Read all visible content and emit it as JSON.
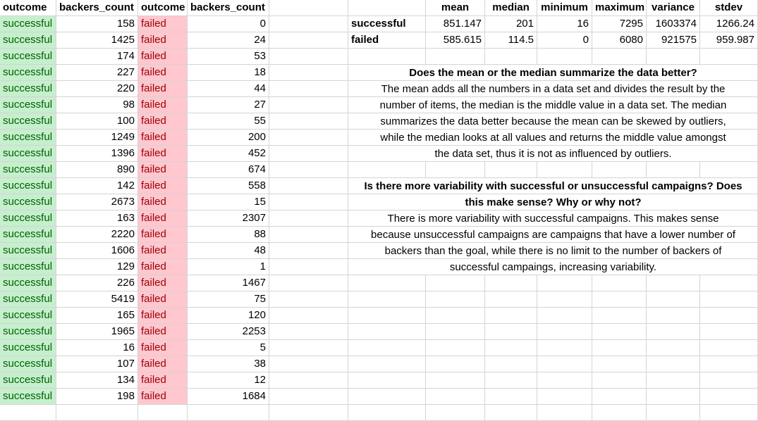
{
  "headers": [
    "outcome",
    "backers_count",
    "outcome",
    "backers_count"
  ],
  "rows": [
    [
      "successful",
      "158",
      "failed",
      "0"
    ],
    [
      "successful",
      "1425",
      "failed",
      "24"
    ],
    [
      "successful",
      "174",
      "failed",
      "53"
    ],
    [
      "successful",
      "227",
      "failed",
      "18"
    ],
    [
      "successful",
      "220",
      "failed",
      "44"
    ],
    [
      "successful",
      "98",
      "failed",
      "27"
    ],
    [
      "successful",
      "100",
      "failed",
      "55"
    ],
    [
      "successful",
      "1249",
      "failed",
      "200"
    ],
    [
      "successful",
      "1396",
      "failed",
      "452"
    ],
    [
      "successful",
      "890",
      "failed",
      "674"
    ],
    [
      "successful",
      "142",
      "failed",
      "558"
    ],
    [
      "successful",
      "2673",
      "failed",
      "15"
    ],
    [
      "successful",
      "163",
      "failed",
      "2307"
    ],
    [
      "successful",
      "2220",
      "failed",
      "88"
    ],
    [
      "successful",
      "1606",
      "failed",
      "48"
    ],
    [
      "successful",
      "129",
      "failed",
      "1"
    ],
    [
      "successful",
      "226",
      "failed",
      "1467"
    ],
    [
      "successful",
      "5419",
      "failed",
      "75"
    ],
    [
      "successful",
      "165",
      "failed",
      "120"
    ],
    [
      "successful",
      "1965",
      "failed",
      "2253"
    ],
    [
      "successful",
      "16",
      "failed",
      "5"
    ],
    [
      "successful",
      "107",
      "failed",
      "38"
    ],
    [
      "successful",
      "134",
      "failed",
      "12"
    ],
    [
      "successful",
      "198",
      "failed",
      "1684"
    ]
  ],
  "stats": {
    "headers": [
      "mean",
      "median",
      "minimum",
      "maximum",
      "variance",
      "stdev"
    ],
    "rows": [
      {
        "label": "successful",
        "values": [
          "851.147",
          "201",
          "16",
          "7295",
          "1603374",
          "1266.24"
        ]
      },
      {
        "label": "failed",
        "values": [
          "585.615",
          "114.5",
          "0",
          "6080",
          "921575",
          "959.987"
        ]
      }
    ]
  },
  "q1": {
    "question": "Does the mean or the median summarize the data better?",
    "answer_lines": [
      "The mean adds all the numbers in a data set and divides the result by the",
      "number of items, the median is the middle value in a data set. The median",
      "summarizes the data better because the mean can be skewed by outliers,",
      "while the median looks at all values and returns the middle value amongst",
      "the data set, thus it is not as influenced by outliers."
    ]
  },
  "q2": {
    "question_lines": [
      "Is there more variability with successful or unsuccessful campaigns? Does",
      "this make sense? Why or why not?"
    ],
    "answer_lines": [
      "There is more variability with successful campaigns. This makes sense",
      "because unsuccessful campaigns are campaigns that have a lower number of",
      "backers than the goal, while there is no limit to the number of backers of",
      "successful campaings, increasing variability."
    ]
  }
}
